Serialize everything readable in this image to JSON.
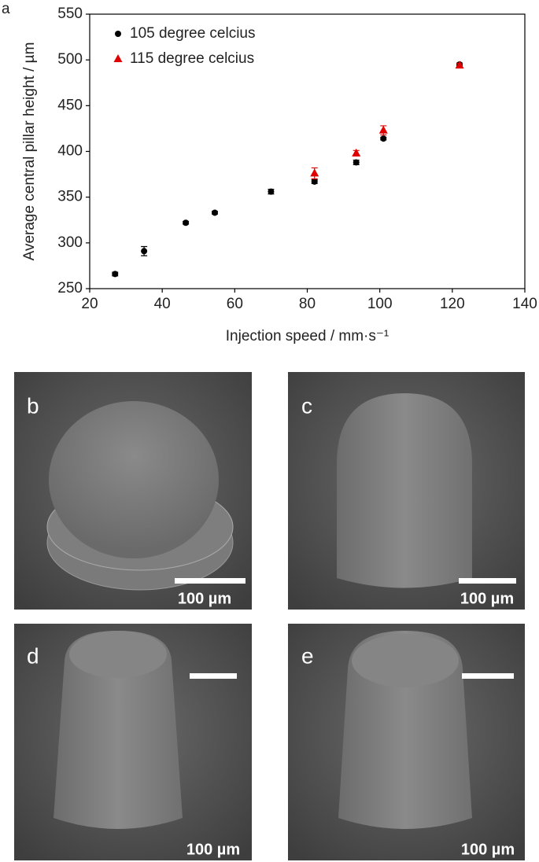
{
  "chart_data": {
    "type": "scatter",
    "panel_label": "a",
    "xlabel": "Injection speed / mm·s⁻¹",
    "ylabel": "Average central pillar height / µm",
    "xlim": [
      20,
      140
    ],
    "xticks": [
      20,
      40,
      60,
      80,
      100,
      120,
      140
    ],
    "ylim": [
      250,
      550
    ],
    "yticks": [
      250,
      300,
      350,
      400,
      450,
      500,
      550
    ],
    "grid": false,
    "legend": "upper left",
    "series": [
      {
        "name": "105 degree celcius",
        "color": "#000000",
        "marker": "circle",
        "x": [
          27,
          35,
          46.5,
          54.5,
          70,
          82,
          93.5,
          101,
          122
        ],
        "values": [
          266,
          291,
          322,
          333,
          356,
          367,
          388,
          414,
          495
        ],
        "errors": [
          2,
          5,
          1.5,
          1.5,
          2.5,
          2,
          2.5,
          1.5,
          1.5
        ]
      },
      {
        "name": "115 degree celcius",
        "color": "#e00000",
        "marker": "triangle",
        "x": [
          82,
          93.5,
          101,
          122
        ],
        "values": [
          376,
          398,
          423,
          494
        ],
        "errors": [
          6,
          3,
          5,
          2
        ]
      }
    ]
  },
  "images": [
    {
      "label": "b",
      "scale_bar": "100 µm"
    },
    {
      "label": "c",
      "scale_bar": "100 µm"
    },
    {
      "label": "d",
      "scale_bar": "100 µm"
    },
    {
      "label": "e",
      "scale_bar": "100 µm"
    }
  ]
}
